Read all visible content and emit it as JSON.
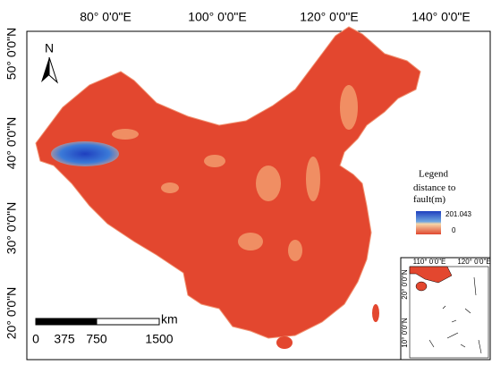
{
  "axes": {
    "top": [
      "80°  0'0\"E",
      "100°  0'0\"E",
      "120°  0'0\"E",
      "140°  0'0\"E"
    ],
    "left": [
      "50°  0'0\"N",
      "40°  0'0\"N",
      "30°  0'0\"N",
      "20°  0'0\"N"
    ]
  },
  "north_arrow": {
    "label": "N"
  },
  "legend": {
    "title": "Legend",
    "field": "distance to fault(m)",
    "high": "201.043",
    "low": "0"
  },
  "scale_bar": {
    "labels": [
      "0",
      "375",
      "750",
      "1500"
    ],
    "unit": "km"
  },
  "inset": {
    "top": [
      "110°  0'0\"E",
      "120°  0'0\"E"
    ],
    "left": [
      "20°  0'0\"N",
      "10°  0'0\"N"
    ]
  }
}
